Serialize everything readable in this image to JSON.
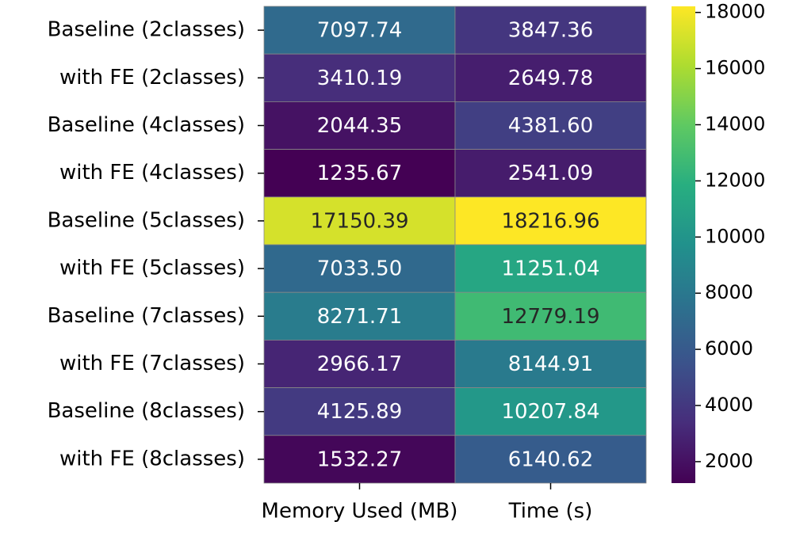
{
  "chart_data": {
    "type": "heatmap",
    "x": [
      "Memory Used (MB)",
      "Time (s)"
    ],
    "y": [
      "Baseline (2classes)",
      "with FE (2classes)",
      "Baseline (4classes)",
      "with FE (4classes)",
      "Baseline (5classes)",
      "with FE (5classes)",
      "Baseline (7classes)",
      "with FE (7classes)",
      "Baseline (8classes)",
      "with FE (8classes)"
    ],
    "values": [
      [
        7097.74,
        3847.36
      ],
      [
        3410.19,
        2649.78
      ],
      [
        2044.35,
        4381.6
      ],
      [
        1235.67,
        2541.09
      ],
      [
        17150.39,
        18216.96
      ],
      [
        7033.5,
        11251.04
      ],
      [
        8271.71,
        12779.19
      ],
      [
        2966.17,
        8144.91
      ],
      [
        4125.89,
        10207.84
      ],
      [
        1532.27,
        6140.62
      ]
    ],
    "value_labels": [
      [
        "7097.74",
        "3847.36"
      ],
      [
        "3410.19",
        "2649.78"
      ],
      [
        "2044.35",
        "4381.60"
      ],
      [
        "1235.67",
        "2541.09"
      ],
      [
        "17150.39",
        "18216.96"
      ],
      [
        "7033.50",
        "11251.04"
      ],
      [
        "8271.71",
        "12779.19"
      ],
      [
        "2966.17",
        "8144.91"
      ],
      [
        "4125.89",
        "10207.84"
      ],
      [
        "1532.27",
        "6140.62"
      ]
    ],
    "colormap": "viridis",
    "clim": [
      1235.67,
      18216.96
    ],
    "cticks": [
      2000,
      4000,
      6000,
      8000,
      10000,
      12000,
      14000,
      16000,
      18000
    ]
  }
}
